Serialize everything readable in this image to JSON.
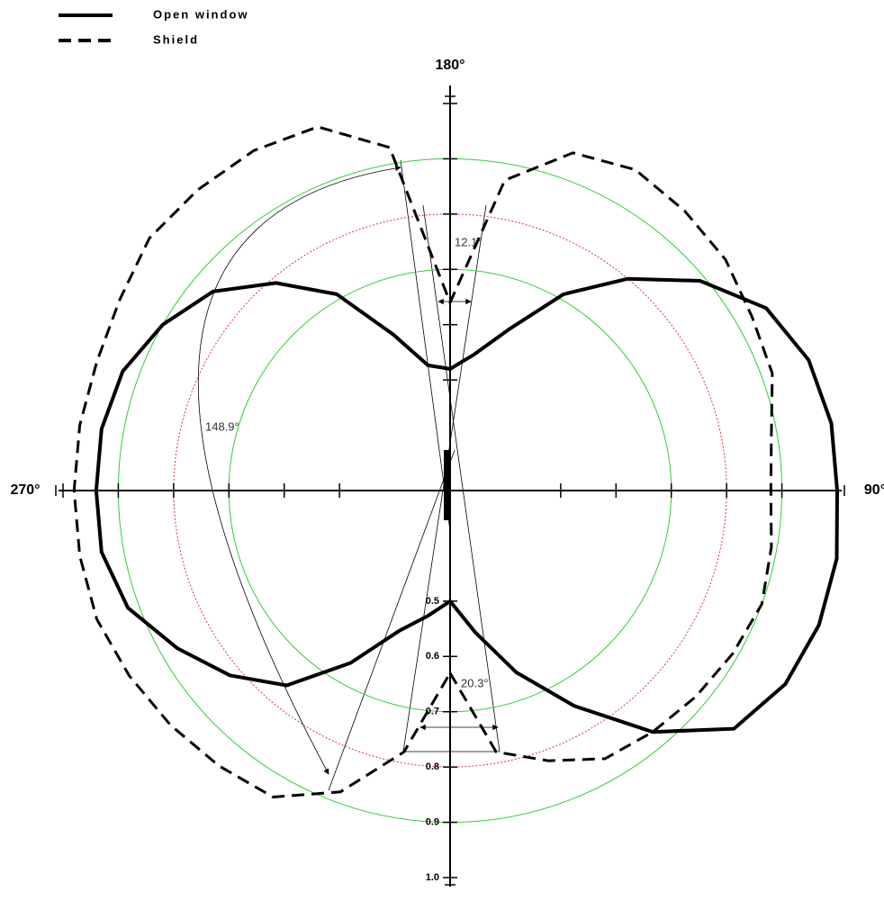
{
  "chart_data": {
    "type": "polar",
    "angles": [
      0,
      10,
      20,
      30,
      40,
      50,
      60,
      70,
      80,
      90,
      100,
      110,
      120,
      130,
      140,
      150,
      160,
      170,
      180,
      190,
      200,
      210,
      220,
      230,
      240,
      250,
      260,
      270,
      280,
      290,
      300,
      310,
      320,
      330,
      340,
      350
    ],
    "series": [
      {
        "name": "Open window",
        "color": "#000000",
        "style": "solid",
        "values": [
          0.5,
          0.56,
          0.65,
          0.75,
          0.87,
          0.97,
          1.0,
          1.01,
          1.01,
          1.0,
          1.0,
          0.99,
          0.96,
          0.89,
          0.8,
          0.71,
          0.61,
          0.55,
          0.52,
          0.53,
          0.6,
          0.71,
          0.79,
          0.86,
          0.9,
          0.93,
          0.94,
          0.94,
          0.94,
          0.92,
          0.87,
          0.82,
          0.76,
          0.66,
          0.57,
          0.53
        ]
      },
      {
        "name": "Shield",
        "color": "#000000",
        "style": "dashed",
        "values": [
          0.63,
          0.78,
          0.82,
          0.86,
          0.87,
          0.88,
          0.89,
          0.9,
          0.89,
          0.88,
          0.89,
          0.92,
          0.93,
          0.95,
          0.96,
          0.97,
          0.95,
          0.87,
          0.64,
          0.93,
          1.0,
          1.01,
          1.01,
          1.01,
          0.99,
          0.98,
          0.98,
          0.98,
          0.98,
          0.98,
          0.97,
          0.96,
          0.95,
          0.94,
          0.88,
          0.78
        ]
      }
    ],
    "rlim": [
      0.3,
      1.0
    ],
    "rticks": [
      0.5,
      0.6,
      0.7,
      0.8,
      0.9,
      {
        "value": 1.0,
        "label": "1.0"
      }
    ],
    "angle_ticks": [
      {
        "value": 0,
        "label": "0°"
      },
      {
        "value": 90,
        "label": "90°"
      },
      {
        "value": 180,
        "label": "180°"
      },
      {
        "value": 270,
        "label": "270°"
      }
    ],
    "circles": [
      {
        "value": 0.7,
        "color": "#33cc33"
      },
      {
        "value": 0.8,
        "color": "#dd3333"
      },
      {
        "value": 0.9,
        "color": "#33cc33"
      }
    ],
    "annotations": [
      "12.1°",
      "20.3°",
      "148.9°"
    ]
  }
}
